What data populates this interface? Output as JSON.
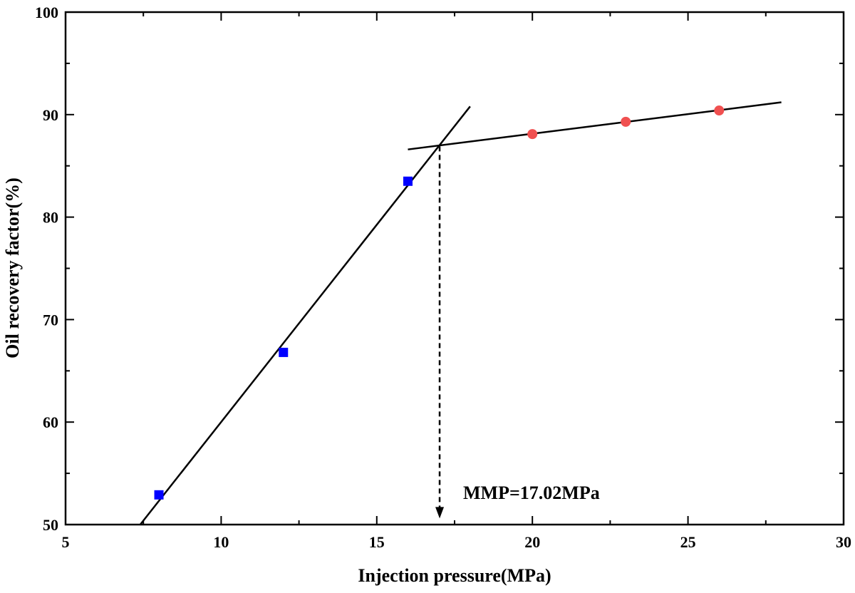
{
  "chart_data": {
    "type": "scatter",
    "title": "",
    "xlabel": "Injection pressure(MPa)",
    "ylabel": "Oil recovery factor(%)",
    "xlim": [
      5,
      30
    ],
    "ylim": [
      50,
      100
    ],
    "xticks": [
      5,
      10,
      15,
      20,
      25,
      30
    ],
    "yticks": [
      50,
      60,
      70,
      80,
      90,
      100
    ],
    "grid": false,
    "legend": "none",
    "series": [
      {
        "marker": "square",
        "color": "#0000ff",
        "x": [
          8,
          12,
          16
        ],
        "y": [
          52.9,
          66.8,
          83.5
        ]
      },
      {
        "marker": "circle",
        "color": "#f05050",
        "x": [
          20,
          23,
          26
        ],
        "y": [
          88.1,
          89.3,
          90.4
        ]
      }
    ],
    "fit_lines": [
      {
        "x": [
          7.4,
          18.0
        ],
        "y": [
          50.0,
          90.8
        ]
      },
      {
        "x": [
          16.0,
          28.0
        ],
        "y": [
          86.6,
          91.2
        ]
      }
    ],
    "annotations": [
      {
        "text": "MMP=17.02MPa",
        "x": 17.02,
        "y_from": 86.9,
        "y_to": 50.6,
        "style": "dashed-arrow"
      }
    ]
  }
}
